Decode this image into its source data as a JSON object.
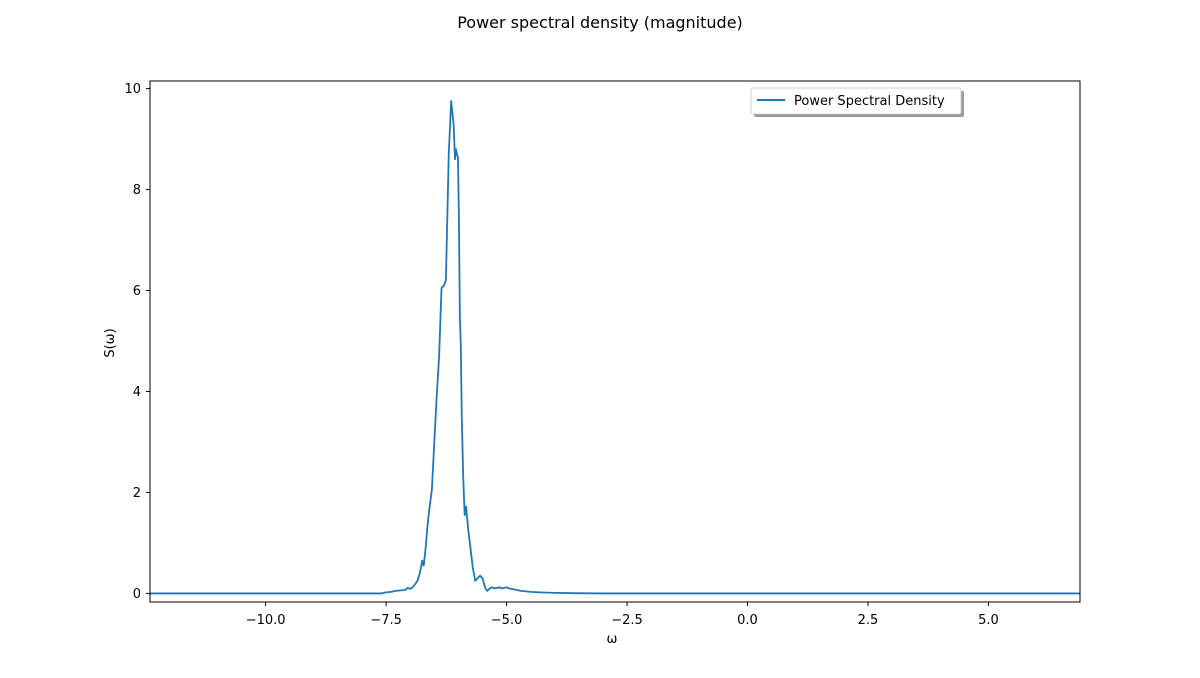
{
  "chart_data": {
    "type": "line",
    "title": "Power spectral density  (magnitude)",
    "xlabel": "ω",
    "ylabel": "S(ω)",
    "xlim": [
      -12.4,
      6.9
    ],
    "ylim": [
      -0.17,
      10.15
    ],
    "xticks": [
      -10.0,
      -7.5,
      -5.0,
      -2.5,
      0.0,
      2.5,
      5.0
    ],
    "xtick_labels": [
      "−10.0",
      "−7.5",
      "−5.0",
      "−2.5",
      "0.0",
      "2.5",
      "5.0"
    ],
    "yticks": [
      0,
      2,
      4,
      6,
      8,
      10
    ],
    "ytick_labels": [
      "0",
      "2",
      "4",
      "6",
      "8",
      "10"
    ],
    "grid": false,
    "legend": {
      "placement": "upper-right",
      "shadow": true
    },
    "series": [
      {
        "name": "Power Spectral Density",
        "color": "#1f77b4",
        "x": [
          -12.4,
          -7.6,
          -7.5,
          -7.4,
          -7.3,
          -7.2,
          -7.1,
          -7.05,
          -7.0,
          -6.95,
          -6.9,
          -6.85,
          -6.8,
          -6.75,
          -6.72,
          -6.68,
          -6.64,
          -6.6,
          -6.55,
          -6.5,
          -6.45,
          -6.4,
          -6.35,
          -6.3,
          -6.26,
          -6.2,
          -6.15,
          -6.1,
          -6.07,
          -6.05,
          -6.03,
          -6.01,
          -5.99,
          -5.97,
          -5.95,
          -5.93,
          -5.9,
          -5.87,
          -5.84,
          -5.8,
          -5.75,
          -5.7,
          -5.65,
          -5.6,
          -5.55,
          -5.5,
          -5.47,
          -5.44,
          -5.4,
          -5.35,
          -5.3,
          -5.25,
          -5.2,
          -5.15,
          -5.1,
          -5.05,
          -5.0,
          -4.95,
          -4.9,
          -4.85,
          -4.8,
          -4.75,
          -4.7,
          -4.6,
          -4.5,
          -4.3,
          -4.0,
          -3.6,
          -3.0,
          -2.0,
          0.0,
          6.9
        ],
        "y": [
          0.0,
          0.0,
          0.02,
          0.03,
          0.05,
          0.06,
          0.07,
          0.11,
          0.09,
          0.12,
          0.18,
          0.25,
          0.4,
          0.65,
          0.55,
          0.9,
          1.35,
          1.7,
          2.05,
          3.0,
          3.9,
          4.7,
          6.05,
          6.1,
          6.2,
          8.7,
          9.75,
          9.3,
          8.6,
          8.8,
          8.7,
          8.65,
          7.5,
          5.5,
          4.9,
          3.5,
          2.3,
          1.55,
          1.72,
          1.3,
          0.9,
          0.5,
          0.25,
          0.3,
          0.35,
          0.3,
          0.2,
          0.1,
          0.05,
          0.1,
          0.12,
          0.1,
          0.11,
          0.12,
          0.1,
          0.11,
          0.12,
          0.1,
          0.09,
          0.08,
          0.07,
          0.06,
          0.05,
          0.04,
          0.03,
          0.02,
          0.01,
          0.005,
          0.0,
          0.0,
          0.0,
          0.0
        ]
      }
    ]
  }
}
